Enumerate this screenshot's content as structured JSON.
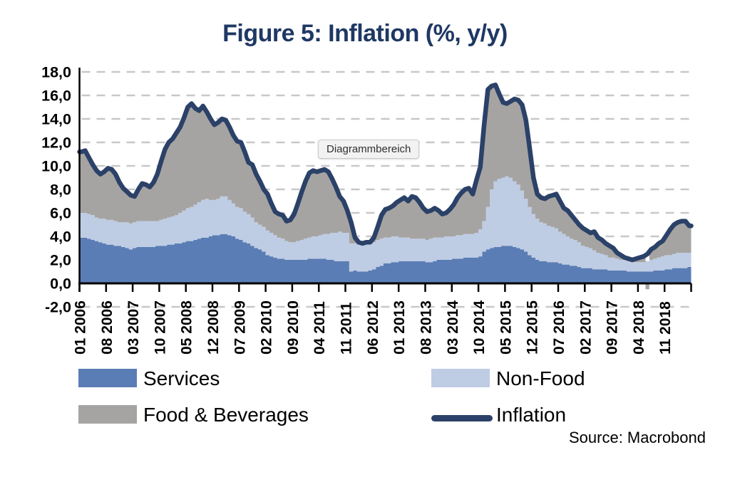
{
  "title": "Figure 5: Inflation (%, y/y)",
  "tooltip_label": "Diagrammbereich",
  "source_note": "Source: Macrobond",
  "legend": {
    "services": "Services",
    "non_food": "Non-Food",
    "food_beverages": "Food & Beverages",
    "inflation": "Inflation"
  },
  "colors": {
    "services": "#5B7DB5",
    "non_food": "#BECDE4",
    "food_beverages": "#A6A4A2",
    "inflation_line": "#2B4168",
    "title_text": "#1F3864",
    "gridline": "#C8C8C8",
    "axis": "#000000",
    "tick_text": "#000000"
  },
  "chart_data": {
    "type": "area",
    "subtype": "stacked-monthly-areas-with-line",
    "title": "Figure 5: Inflation (%, y/y)",
    "x_start": "2006-01",
    "x_end": "2019-05",
    "x_tick_interval_months": 7,
    "x_tick_labels": [
      "01 2006",
      "08 2006",
      "03 2007",
      "10 2007",
      "05 2008",
      "12 2008",
      "07 2009",
      "02 2010",
      "09 2010",
      "04 2011",
      "11 2011",
      "06 2012",
      "01 2013",
      "08 2013",
      "03 2014",
      "10 2014",
      "05 2015",
      "12 2015",
      "07 2016",
      "02 2017",
      "09 2017",
      "04 2018",
      "11 2018"
    ],
    "ylim": [
      -2,
      18
    ],
    "y_ticks": [
      18,
      16,
      14,
      12,
      10,
      8,
      6,
      4,
      2,
      0,
      -2
    ],
    "y_tick_labels": [
      "18,0",
      "16,0",
      "14,0",
      "12,0",
      "10,0",
      "8,0",
      "6,0",
      "4,0",
      "2,0",
      "0,0",
      "-2,0"
    ],
    "grid": "dashed-horizontal",
    "legend_position": "bottom",
    "series": [
      {
        "name": "Services",
        "type": "area",
        "stacked": true,
        "color": "#5B7DB5",
        "values": [
          3.9,
          3.9,
          3.8,
          3.7,
          3.6,
          3.5,
          3.4,
          3.3,
          3.3,
          3.2,
          3.2,
          3.1,
          3.0,
          2.9,
          3.0,
          3.1,
          3.1,
          3.1,
          3.1,
          3.1,
          3.2,
          3.2,
          3.2,
          3.3,
          3.3,
          3.4,
          3.4,
          3.5,
          3.6,
          3.6,
          3.7,
          3.8,
          3.9,
          3.9,
          4.0,
          4.1,
          4.1,
          4.2,
          4.2,
          4.1,
          4.0,
          3.8,
          3.7,
          3.5,
          3.4,
          3.2,
          3.0,
          2.9,
          2.7,
          2.4,
          2.3,
          2.2,
          2.1,
          2.1,
          2.0,
          2.0,
          2.0,
          2.0,
          2.0,
          2.0,
          2.1,
          2.1,
          2.1,
          2.1,
          2.1,
          2.0,
          2.0,
          1.9,
          1.9,
          1.9,
          1.9,
          1.0,
          1.1,
          1.0,
          1.0,
          1.0,
          1.1,
          1.2,
          1.4,
          1.5,
          1.7,
          1.7,
          1.8,
          1.8,
          1.9,
          1.9,
          1.9,
          1.9,
          1.9,
          1.9,
          1.9,
          1.8,
          1.8,
          1.9,
          2.0,
          2.0,
          2.0,
          2.0,
          2.1,
          2.1,
          2.1,
          2.2,
          2.2,
          2.2,
          2.2,
          2.3,
          2.7,
          2.9,
          3.0,
          3.1,
          3.1,
          3.2,
          3.2,
          3.2,
          3.1,
          3.0,
          2.9,
          2.7,
          2.4,
          2.2,
          2.0,
          1.9,
          1.9,
          1.8,
          1.8,
          1.8,
          1.7,
          1.6,
          1.6,
          1.5,
          1.5,
          1.4,
          1.3,
          1.3,
          1.3,
          1.2,
          1.2,
          1.2,
          1.2,
          1.1,
          1.1,
          1.1,
          1.1,
          1.1,
          1.0,
          1.0,
          1.0,
          1.0,
          1.0,
          1.0,
          1.0,
          1.1,
          1.1,
          1.1,
          1.2,
          1.2,
          1.3,
          1.3,
          1.3,
          1.3,
          1.4
        ]
      },
      {
        "name": "Non-Food",
        "type": "area",
        "stacked": true,
        "color": "#BECDE4",
        "values": [
          2.1,
          2.1,
          2.1,
          2.1,
          2.0,
          2.0,
          2.1,
          2.1,
          2.1,
          2.1,
          2.0,
          2.1,
          2.2,
          2.2,
          2.2,
          2.2,
          2.2,
          2.2,
          2.2,
          2.2,
          2.1,
          2.2,
          2.3,
          2.3,
          2.4,
          2.4,
          2.6,
          2.7,
          2.8,
          2.9,
          3.0,
          3.1,
          3.2,
          3.3,
          3.1,
          3.0,
          3.1,
          3.2,
          3.2,
          3.0,
          2.8,
          2.7,
          2.7,
          2.6,
          2.5,
          2.4,
          2.2,
          2.1,
          2.1,
          2.1,
          2.0,
          1.9,
          1.8,
          1.7,
          1.6,
          1.5,
          1.5,
          1.6,
          1.7,
          1.8,
          1.8,
          1.9,
          1.9,
          2.0,
          2.1,
          2.2,
          2.3,
          2.4,
          2.5,
          2.4,
          2.4,
          2.4,
          2.3,
          2.3,
          2.3,
          2.3,
          2.3,
          2.3,
          2.3,
          2.3,
          2.2,
          2.2,
          2.2,
          2.2,
          2.0,
          2.0,
          2.0,
          1.9,
          1.9,
          1.9,
          1.9,
          1.9,
          2.0,
          2.0,
          1.9,
          1.9,
          2.0,
          2.0,
          1.9,
          2.0,
          2.0,
          2.0,
          2.0,
          2.0,
          2.1,
          2.3,
          2.6,
          3.6,
          5.0,
          5.6,
          5.8,
          5.8,
          5.9,
          5.8,
          5.6,
          5.4,
          5.0,
          4.5,
          4.1,
          3.7,
          3.5,
          3.3,
          3.2,
          3.1,
          3.0,
          2.9,
          2.7,
          2.6,
          2.4,
          2.3,
          2.2,
          2.1,
          1.9,
          1.8,
          1.7,
          1.6,
          1.4,
          1.3,
          1.2,
          1.1,
          1.1,
          1.0,
          0.9,
          0.9,
          0.9,
          0.8,
          0.8,
          0.8,
          0.8,
          0.9,
          1.0,
          1.0,
          1.1,
          1.2,
          1.2,
          1.2,
          1.2,
          1.3,
          1.3,
          1.3,
          1.2
        ]
      },
      {
        "name": "Food & Beverages",
        "type": "area",
        "stacked": true,
        "color": "#A6A4A2",
        "values": [
          5.2,
          5.3,
          4.8,
          4.3,
          4.0,
          3.8,
          4.0,
          4.4,
          4.3,
          4.0,
          3.4,
          2.9,
          2.6,
          2.4,
          2.2,
          2.7,
          3.2,
          3.1,
          2.9,
          3.3,
          4.0,
          5.0,
          5.9,
          6.4,
          6.6,
          7.0,
          7.3,
          7.9,
          8.6,
          8.8,
          8.2,
          7.8,
          8.0,
          7.4,
          6.9,
          6.4,
          6.5,
          6.6,
          6.5,
          6.2,
          5.8,
          5.6,
          5.6,
          5.1,
          4.4,
          4.5,
          4.1,
          3.7,
          3.2,
          3.1,
          2.5,
          2.0,
          2.0,
          2.0,
          1.7,
          1.9,
          2.4,
          3.2,
          4.1,
          4.9,
          5.5,
          5.6,
          5.5,
          5.5,
          5.5,
          5.3,
          4.6,
          3.9,
          3.0,
          2.7,
          1.9,
          1.8,
          0.5,
          0.2,
          0.1,
          0.2,
          0.1,
          0.4,
          1.1,
          2.0,
          2.4,
          2.5,
          2.6,
          2.9,
          3.2,
          3.4,
          3.1,
          3.6,
          3.5,
          3.1,
          2.6,
          2.4,
          2.4,
          2.5,
          2.3,
          2.0,
          2.0,
          2.3,
          2.7,
          3.2,
          3.6,
          3.8,
          3.9,
          3.4,
          4.5,
          5.3,
          8.2,
          10.0,
          8.8,
          8.2,
          7.2,
          6.4,
          6.2,
          6.5,
          7.0,
          7.2,
          7.3,
          6.7,
          5.0,
          3.1,
          2.1,
          2.1,
          2.1,
          2.5,
          2.7,
          2.9,
          2.6,
          2.2,
          2.2,
          2.0,
          1.7,
          1.5,
          1.5,
          1.4,
          1.3,
          1.6,
          1.3,
          1.2,
          1.0,
          1.0,
          0.8,
          0.5,
          0.4,
          0.2,
          0.2,
          0.2,
          0.3,
          0.4,
          0.5,
          -0.5,
          0.9,
          1.0,
          1.2,
          1.3,
          1.7,
          2.2,
          2.5,
          2.6,
          2.7,
          2.7,
          2.3
        ]
      },
      {
        "name": "Inflation",
        "type": "line",
        "color": "#2B4168",
        "values": [
          11.2,
          11.3,
          10.7,
          10.1,
          9.6,
          9.3,
          9.5,
          9.8,
          9.7,
          9.3,
          8.6,
          8.1,
          7.8,
          7.5,
          7.4,
          8.0,
          8.5,
          8.4,
          8.2,
          8.6,
          9.3,
          10.4,
          11.4,
          12.0,
          12.3,
          12.8,
          13.3,
          14.1,
          15.0,
          15.3,
          14.9,
          14.7,
          15.1,
          14.6,
          14.0,
          13.5,
          13.7,
          14.0,
          13.9,
          13.3,
          12.6,
          12.1,
          12.0,
          11.2,
          10.3,
          10.1,
          9.3,
          8.7,
          8.0,
          7.6,
          6.8,
          6.1,
          5.9,
          5.8,
          5.3,
          5.4,
          5.9,
          6.8,
          7.8,
          8.7,
          9.4,
          9.6,
          9.5,
          9.6,
          9.7,
          9.5,
          8.9,
          8.2,
          7.4,
          7.0,
          6.2,
          5.2,
          3.9,
          3.5,
          3.4,
          3.5,
          3.5,
          3.9,
          4.8,
          5.8,
          6.3,
          6.4,
          6.6,
          6.9,
          7.1,
          7.3,
          7.0,
          7.4,
          7.3,
          6.9,
          6.4,
          6.1,
          6.2,
          6.4,
          6.2,
          5.9,
          6.0,
          6.3,
          6.7,
          7.3,
          7.7,
          8.0,
          8.1,
          7.6,
          8.8,
          9.9,
          13.5,
          16.5,
          16.8,
          16.9,
          16.1,
          15.4,
          15.3,
          15.5,
          15.7,
          15.6,
          15.2,
          13.9,
          11.5,
          9.0,
          7.6,
          7.3,
          7.2,
          7.4,
          7.5,
          7.6,
          7.0,
          6.4,
          6.2,
          5.8,
          5.4,
          5.0,
          4.7,
          4.5,
          4.3,
          4.4,
          3.9,
          3.7,
          3.4,
          3.2,
          3.0,
          2.6,
          2.4,
          2.2,
          2.1,
          2.0,
          2.1,
          2.2,
          2.3,
          2.5,
          2.9,
          3.1,
          3.4,
          3.6,
          4.1,
          4.6,
          5.0,
          5.2,
          5.3,
          5.3,
          4.9
        ]
      }
    ]
  }
}
